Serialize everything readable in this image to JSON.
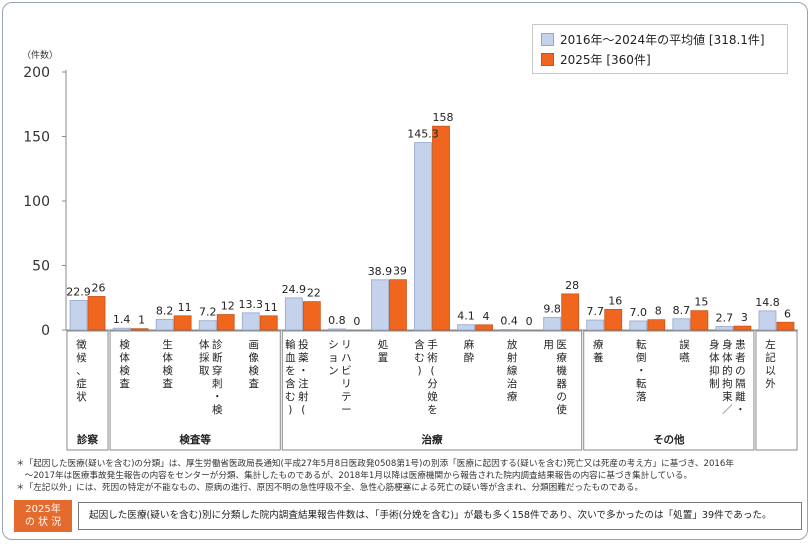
{
  "chart_data": {
    "type": "bar",
    "y_unit_label": "（件数）",
    "ylim": [
      0,
      200
    ],
    "yticks": [
      0,
      50,
      100,
      150,
      200
    ],
    "grid": false,
    "legend_position": "top-right",
    "series": [
      {
        "name": "2016年～2024年の平均値 [318.1件]",
        "color": "#c5d2ec",
        "stroke": "#93a6cc"
      },
      {
        "name": "2025年 [360件]",
        "color": "#f0661e",
        "stroke": "#c9541a"
      }
    ],
    "categories": [
      {
        "label": "徴候、症状",
        "avg": 22.9,
        "y2025": 26,
        "avg_label": "22.9",
        "label2025": "26"
      },
      {
        "label": "検体検査",
        "avg": 1.4,
        "y2025": 1,
        "avg_label": "1.4",
        "label2025": "1"
      },
      {
        "label": "生体検査",
        "avg": 8.2,
        "y2025": 11,
        "avg_label": "8.2",
        "label2025": "11"
      },
      {
        "label": "診断穿刺・検体採取",
        "avg": 7.2,
        "y2025": 12,
        "avg_label": "7.2",
        "label2025": "12"
      },
      {
        "label": "画像検査",
        "avg": 13.3,
        "y2025": 11,
        "avg_label": "13.3",
        "label2025": "11"
      },
      {
        "label": "投薬・注射(輸血を含む)",
        "avg": 24.9,
        "y2025": 22,
        "avg_label": "24.9",
        "label2025": "22"
      },
      {
        "label": "リハビリテーション",
        "avg": 0.8,
        "y2025": 0,
        "avg_label": "0.8",
        "label2025": "0"
      },
      {
        "label": "処置",
        "avg": 38.9,
        "y2025": 39,
        "avg_label": "38.9",
        "label2025": "39"
      },
      {
        "label": "手術(分娩を含む)",
        "avg": 145.3,
        "y2025": 158,
        "avg_label": "145.3",
        "label2025": "158"
      },
      {
        "label": "麻酔",
        "avg": 4.1,
        "y2025": 4,
        "avg_label": "4.1",
        "label2025": "4"
      },
      {
        "label": "放射線治療",
        "avg": 0.4,
        "y2025": 0,
        "avg_label": "0.4",
        "label2025": "0"
      },
      {
        "label": "医療機器の使用",
        "avg": 9.8,
        "y2025": 28,
        "avg_label": "9.8",
        "label2025": "28"
      },
      {
        "label": "療養",
        "avg": 7.7,
        "y2025": 16,
        "avg_label": "7.7",
        "label2025": "16"
      },
      {
        "label": "転倒・転落",
        "avg": 7.0,
        "y2025": 8,
        "avg_label": "7.0",
        "label2025": "8"
      },
      {
        "label": "誤嚥",
        "avg": 8.7,
        "y2025": 15,
        "avg_label": "8.7",
        "label2025": "15"
      },
      {
        "label": "患者の隔離・身体的拘束／身体抑制",
        "avg": 2.7,
        "y2025": 3,
        "avg_label": "2.7",
        "label2025": "3"
      },
      {
        "label": "左記以外",
        "avg": 14.8,
        "y2025": 6,
        "avg_label": "14.8",
        "label2025": "6"
      }
    ],
    "groups": [
      {
        "name": "診察",
        "start": 0,
        "end": 0
      },
      {
        "name": "検査等",
        "start": 1,
        "end": 4
      },
      {
        "name": "治療",
        "start": 5,
        "end": 11
      },
      {
        "name": "その他",
        "start": 12,
        "end": 15
      },
      {
        "name": "",
        "start": 16,
        "end": 16
      }
    ]
  },
  "notes": [
    "＊「起因した医療(疑いを含む)の分類」は、厚生労働省医政局長通知(平成27年5月8日医政発0508第1号)の別添「医療に起因する(疑いを含む)死亡又は死産の考え方」に基づき、2016年",
    "　～2017年は医療事故発生報告の内容をセンターが分類、集計したものであるが、2018年1月以降は医療機関から報告された院内調査結果報告の内容に基づき集計している。",
    "＊「左記以外」には、死因の特定が不能なもの、原病の進行、原因不明の急性呼吸不全、急性心筋梗塞による死亡の疑い等が含まれ、分類困難だったものである。"
  ],
  "status": {
    "badge_line1": "2025年",
    "badge_line2": "の 状 況",
    "text": "起因した医療(疑いを含む)別に分類した院内調査結果報告件数は、「手術(分娩を含む)」が最も多く158件であり、次いで多かったのは「処置」39件であった。"
  }
}
